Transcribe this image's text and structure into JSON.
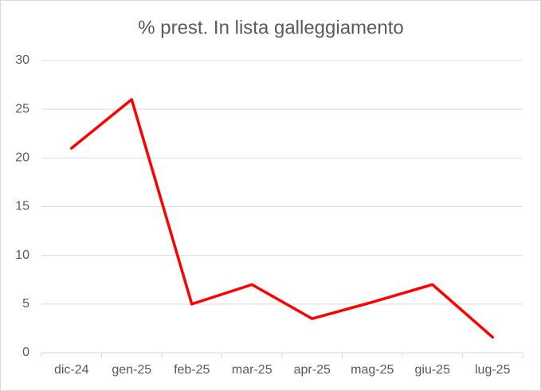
{
  "chart_data": {
    "type": "line",
    "title": "% prest. In lista galleggiamento",
    "categories": [
      "dic-24",
      "gen-25",
      "feb-25",
      "mar-25",
      "apr-25",
      "mag-25",
      "giu-25",
      "lug-25"
    ],
    "values": [
      21,
      26,
      5,
      7,
      3.5,
      5.2,
      7,
      1.6
    ],
    "color": "#ff0000",
    "ylim": [
      0,
      30
    ],
    "yticks": [
      0,
      5,
      10,
      15,
      20,
      25,
      30
    ],
    "grid": true
  }
}
